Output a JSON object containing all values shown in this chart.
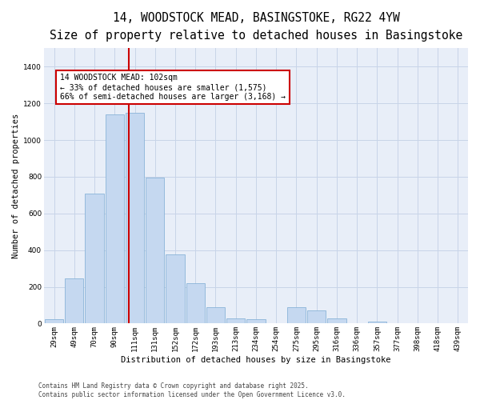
{
  "title_line1": "14, WOODSTOCK MEAD, BASINGSTOKE, RG22 4YW",
  "title_line2": "Size of property relative to detached houses in Basingstoke",
  "xlabel": "Distribution of detached houses by size in Basingstoke",
  "ylabel": "Number of detached properties",
  "categories": [
    "29sqm",
    "49sqm",
    "70sqm",
    "90sqm",
    "111sqm",
    "131sqm",
    "152sqm",
    "172sqm",
    "193sqm",
    "213sqm",
    "234sqm",
    "254sqm",
    "275sqm",
    "295sqm",
    "316sqm",
    "336sqm",
    "357sqm",
    "377sqm",
    "398sqm",
    "418sqm",
    "439sqm"
  ],
  "values": [
    25,
    245,
    710,
    1140,
    1150,
    795,
    375,
    220,
    90,
    30,
    25,
    0,
    90,
    70,
    30,
    0,
    10,
    0,
    0,
    0,
    0
  ],
  "bar_color": "#c5d8f0",
  "bar_edge_color": "#8ab4d8",
  "vline_color": "#cc0000",
  "vline_position": 3.7,
  "annotation_text": "14 WOODSTOCK MEAD: 102sqm\n← 33% of detached houses are smaller (1,575)\n66% of semi-detached houses are larger (3,168) →",
  "annotation_box_facecolor": "#ffffff",
  "annotation_box_edgecolor": "#cc0000",
  "ylim": [
    0,
    1500
  ],
  "yticks": [
    0,
    200,
    400,
    600,
    800,
    1000,
    1200,
    1400
  ],
  "grid_color": "#c8d4e8",
  "background_color": "#e8eef8",
  "footer_text": "Contains HM Land Registry data © Crown copyright and database right 2025.\nContains public sector information licensed under the Open Government Licence v3.0.",
  "title_fontsize": 10.5,
  "subtitle_fontsize": 8.5,
  "axis_label_fontsize": 7.5,
  "tick_fontsize": 6.5,
  "annotation_fontsize": 7,
  "footer_fontsize": 5.5
}
